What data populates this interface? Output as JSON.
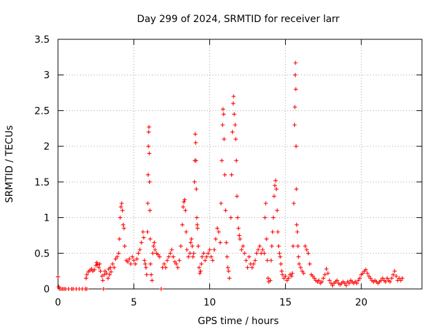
{
  "chart_data": {
    "type": "scatter",
    "title": "Day 299 of 2024, SRMTID for receiver larr",
    "xlabel": "GPS time / hours",
    "ylabel": "SRMTID / TECUs",
    "xlim": [
      0,
      24
    ],
    "ylim": [
      0,
      3.5
    ],
    "xticks": [
      0,
      5,
      10,
      15,
      20
    ],
    "xtick_labels": [
      "0",
      "5",
      "10",
      "15",
      "20"
    ],
    "yticks": [
      0,
      0.5,
      1,
      1.5,
      2,
      2.5,
      3,
      3.5
    ],
    "ytick_labels": [
      "0",
      "0.5",
      "1",
      "1.5",
      "2",
      "2.5",
      "3",
      "3.5"
    ],
    "grid": true,
    "marker": "+",
    "series": [
      {
        "name": "SRMTID",
        "color": "#ff0000",
        "points": [
          [
            0.0,
            0.17
          ],
          [
            0.05,
            0.03
          ],
          [
            0.1,
            0.0
          ],
          [
            0.2,
            0.0
          ],
          [
            0.3,
            0.0
          ],
          [
            0.4,
            0.0
          ],
          [
            0.5,
            0.0
          ],
          [
            0.7,
            0.0
          ],
          [
            0.9,
            0.0
          ],
          [
            1.0,
            0.0
          ],
          [
            1.2,
            0.0
          ],
          [
            1.4,
            0.0
          ],
          [
            1.6,
            0.0
          ],
          [
            1.8,
            0.0
          ],
          [
            1.9,
            0.0
          ],
          [
            1.85,
            0.15
          ],
          [
            1.9,
            0.2
          ],
          [
            2.0,
            0.24
          ],
          [
            2.1,
            0.26
          ],
          [
            2.2,
            0.28
          ],
          [
            2.3,
            0.25
          ],
          [
            2.4,
            0.27
          ],
          [
            2.5,
            0.33
          ],
          [
            2.55,
            0.37
          ],
          [
            2.6,
            0.34
          ],
          [
            2.7,
            0.3
          ],
          [
            2.75,
            0.35
          ],
          [
            2.8,
            0.25
          ],
          [
            2.9,
            0.18
          ],
          [
            2.95,
            0.12
          ],
          [
            3.0,
            0.0
          ],
          [
            3.05,
            0.2
          ],
          [
            3.1,
            0.25
          ],
          [
            3.2,
            0.22
          ],
          [
            3.3,
            0.15
          ],
          [
            3.35,
            0.28
          ],
          [
            3.4,
            0.2
          ],
          [
            3.45,
            0.3
          ],
          [
            3.5,
            0.24
          ],
          [
            3.6,
            0.35
          ],
          [
            3.7,
            0.3
          ],
          [
            3.8,
            0.42
          ],
          [
            3.9,
            0.45
          ],
          [
            4.0,
            0.5
          ],
          [
            4.05,
            0.7
          ],
          [
            4.1,
            1.0
          ],
          [
            4.15,
            1.15
          ],
          [
            4.2,
            1.2
          ],
          [
            4.25,
            1.1
          ],
          [
            4.3,
            0.9
          ],
          [
            4.35,
            0.85
          ],
          [
            4.4,
            0.6
          ],
          [
            4.5,
            0.4
          ],
          [
            4.6,
            0.38
          ],
          [
            4.7,
            0.42
          ],
          [
            4.8,
            0.35
          ],
          [
            4.9,
            0.45
          ],
          [
            5.0,
            0.4
          ],
          [
            5.1,
            0.35
          ],
          [
            5.2,
            0.42
          ],
          [
            5.3,
            0.5
          ],
          [
            5.4,
            0.55
          ],
          [
            5.5,
            0.65
          ],
          [
            5.6,
            0.8
          ],
          [
            5.65,
            0.72
          ],
          [
            5.7,
            0.4
          ],
          [
            5.75,
            0.35
          ],
          [
            5.8,
            0.3
          ],
          [
            5.85,
            0.2
          ],
          [
            5.9,
            0.8
          ],
          [
            5.92,
            1.2
          ],
          [
            5.94,
            1.6
          ],
          [
            5.96,
            2.0
          ],
          [
            5.98,
            2.2
          ],
          [
            6.0,
            2.27
          ],
          [
            6.02,
            1.9
          ],
          [
            6.04,
            1.5
          ],
          [
            6.06,
            1.1
          ],
          [
            6.08,
            0.7
          ],
          [
            6.1,
            0.35
          ],
          [
            6.15,
            0.2
          ],
          [
            6.2,
            0.12
          ],
          [
            6.25,
            0.5
          ],
          [
            6.3,
            0.6
          ],
          [
            6.35,
            0.65
          ],
          [
            6.4,
            0.55
          ],
          [
            6.5,
            0.5
          ],
          [
            6.6,
            0.48
          ],
          [
            6.7,
            0.45
          ],
          [
            6.8,
            0.0
          ],
          [
            6.9,
            0.3
          ],
          [
            7.0,
            0.35
          ],
          [
            7.1,
            0.3
          ],
          [
            7.2,
            0.4
          ],
          [
            7.3,
            0.45
          ],
          [
            7.4,
            0.5
          ],
          [
            7.5,
            0.55
          ],
          [
            7.6,
            0.45
          ],
          [
            7.7,
            0.38
          ],
          [
            7.8,
            0.35
          ],
          [
            7.9,
            0.3
          ],
          [
            8.0,
            0.4
          ],
          [
            8.1,
            0.6
          ],
          [
            8.2,
            0.9
          ],
          [
            8.25,
            1.15
          ],
          [
            8.3,
            1.22
          ],
          [
            8.35,
            1.25
          ],
          [
            8.4,
            1.1
          ],
          [
            8.45,
            0.8
          ],
          [
            8.5,
            0.55
          ],
          [
            8.6,
            0.45
          ],
          [
            8.7,
            0.5
          ],
          [
            8.75,
            0.65
          ],
          [
            8.8,
            0.7
          ],
          [
            8.85,
            0.6
          ],
          [
            8.9,
            0.45
          ],
          [
            8.95,
            0.5
          ],
          [
            9.0,
            1.5
          ],
          [
            9.02,
            1.8
          ],
          [
            9.05,
            2.17
          ],
          [
            9.08,
            2.05
          ],
          [
            9.1,
            1.8
          ],
          [
            9.12,
            1.4
          ],
          [
            9.15,
            1.0
          ],
          [
            9.18,
            0.9
          ],
          [
            9.2,
            0.85
          ],
          [
            9.25,
            0.6
          ],
          [
            9.3,
            0.3
          ],
          [
            9.35,
            0.22
          ],
          [
            9.4,
            0.25
          ],
          [
            9.45,
            0.35
          ],
          [
            9.5,
            0.45
          ],
          [
            9.6,
            0.5
          ],
          [
            9.7,
            0.4
          ],
          [
            9.8,
            0.45
          ],
          [
            9.9,
            0.5
          ],
          [
            10.0,
            0.55
          ],
          [
            10.1,
            0.45
          ],
          [
            10.2,
            0.4
          ],
          [
            10.3,
            0.55
          ],
          [
            10.4,
            0.7
          ],
          [
            10.5,
            0.85
          ],
          [
            10.6,
            0.8
          ],
          [
            10.7,
            0.65
          ],
          [
            10.75,
            1.2
          ],
          [
            10.8,
            1.8
          ],
          [
            10.85,
            2.3
          ],
          [
            10.88,
            2.52
          ],
          [
            10.92,
            2.45
          ],
          [
            10.95,
            2.1
          ],
          [
            11.0,
            1.6
          ],
          [
            11.05,
            1.1
          ],
          [
            11.1,
            0.65
          ],
          [
            11.15,
            0.45
          ],
          [
            11.2,
            0.3
          ],
          [
            11.25,
            0.25
          ],
          [
            11.3,
            0.15
          ],
          [
            11.4,
            1.0
          ],
          [
            11.45,
            1.6
          ],
          [
            11.5,
            2.2
          ],
          [
            11.55,
            2.6
          ],
          [
            11.58,
            2.7
          ],
          [
            11.62,
            2.45
          ],
          [
            11.68,
            2.3
          ],
          [
            11.72,
            2.1
          ],
          [
            11.76,
            1.8
          ],
          [
            11.8,
            1.3
          ],
          [
            11.85,
            1.0
          ],
          [
            11.9,
            0.85
          ],
          [
            11.95,
            0.75
          ],
          [
            12.0,
            0.7
          ],
          [
            12.1,
            0.55
          ],
          [
            12.2,
            0.6
          ],
          [
            12.3,
            0.5
          ],
          [
            12.4,
            0.4
          ],
          [
            12.5,
            0.3
          ],
          [
            12.6,
            0.45
          ],
          [
            12.7,
            0.35
          ],
          [
            12.8,
            0.3
          ],
          [
            12.9,
            0.35
          ],
          [
            13.0,
            0.4
          ],
          [
            13.1,
            0.5
          ],
          [
            13.2,
            0.55
          ],
          [
            13.3,
            0.6
          ],
          [
            13.4,
            0.5
          ],
          [
            13.5,
            0.55
          ],
          [
            13.6,
            0.5
          ],
          [
            13.65,
            1.0
          ],
          [
            13.7,
            1.2
          ],
          [
            13.75,
            0.7
          ],
          [
            13.8,
            0.4
          ],
          [
            13.85,
            0.15
          ],
          [
            13.9,
            0.1
          ],
          [
            14.0,
            0.12
          ],
          [
            14.05,
            0.4
          ],
          [
            14.1,
            0.6
          ],
          [
            14.15,
            0.8
          ],
          [
            14.2,
            1.0
          ],
          [
            14.25,
            1.3
          ],
          [
            14.3,
            1.45
          ],
          [
            14.35,
            1.52
          ],
          [
            14.4,
            1.4
          ],
          [
            14.45,
            1.1
          ],
          [
            14.5,
            0.8
          ],
          [
            14.55,
            0.6
          ],
          [
            14.6,
            0.5
          ],
          [
            14.65,
            0.45
          ],
          [
            14.7,
            0.35
          ],
          [
            14.75,
            0.25
          ],
          [
            14.8,
            0.2
          ],
          [
            14.9,
            0.15
          ],
          [
            15.0,
            0.18
          ],
          [
            15.1,
            0.12
          ],
          [
            15.2,
            0.15
          ],
          [
            15.3,
            0.2
          ],
          [
            15.4,
            0.18
          ],
          [
            15.45,
            0.22
          ],
          [
            15.5,
            0.6
          ],
          [
            15.55,
            1.2
          ],
          [
            15.6,
            2.3
          ],
          [
            15.62,
            2.55
          ],
          [
            15.64,
            3.0
          ],
          [
            15.66,
            3.17
          ],
          [
            15.68,
            2.8
          ],
          [
            15.7,
            2.0
          ],
          [
            15.72,
            1.4
          ],
          [
            15.74,
            0.9
          ],
          [
            15.78,
            0.8
          ],
          [
            15.82,
            0.6
          ],
          [
            15.86,
            0.45
          ],
          [
            15.9,
            0.35
          ],
          [
            16.0,
            0.3
          ],
          [
            16.1,
            0.25
          ],
          [
            16.2,
            0.22
          ],
          [
            16.3,
            0.6
          ],
          [
            16.4,
            0.55
          ],
          [
            16.5,
            0.5
          ],
          [
            16.6,
            0.35
          ],
          [
            16.7,
            0.2
          ],
          [
            16.8,
            0.18
          ],
          [
            16.9,
            0.15
          ],
          [
            17.0,
            0.12
          ],
          [
            17.1,
            0.1
          ],
          [
            17.2,
            0.12
          ],
          [
            17.3,
            0.08
          ],
          [
            17.4,
            0.1
          ],
          [
            17.5,
            0.15
          ],
          [
            17.6,
            0.2
          ],
          [
            17.7,
            0.28
          ],
          [
            17.8,
            0.22
          ],
          [
            17.9,
            0.12
          ],
          [
            18.0,
            0.08
          ],
          [
            18.1,
            0.05
          ],
          [
            18.2,
            0.08
          ],
          [
            18.3,
            0.1
          ],
          [
            18.4,
            0.12
          ],
          [
            18.5,
            0.08
          ],
          [
            18.6,
            0.06
          ],
          [
            18.7,
            0.08
          ],
          [
            18.8,
            0.1
          ],
          [
            18.9,
            0.08
          ],
          [
            19.0,
            0.05
          ],
          [
            19.1,
            0.1
          ],
          [
            19.2,
            0.08
          ],
          [
            19.3,
            0.12
          ],
          [
            19.4,
            0.1
          ],
          [
            19.5,
            0.08
          ],
          [
            19.6,
            0.1
          ],
          [
            19.7,
            0.08
          ],
          [
            19.8,
            0.12
          ],
          [
            19.9,
            0.15
          ],
          [
            20.0,
            0.2
          ],
          [
            20.1,
            0.22
          ],
          [
            20.2,
            0.25
          ],
          [
            20.3,
            0.27
          ],
          [
            20.4,
            0.22
          ],
          [
            20.5,
            0.18
          ],
          [
            20.6,
            0.15
          ],
          [
            20.7,
            0.12
          ],
          [
            20.8,
            0.1
          ],
          [
            20.9,
            0.12
          ],
          [
            21.0,
            0.1
          ],
          [
            21.1,
            0.08
          ],
          [
            21.2,
            0.1
          ],
          [
            21.3,
            0.12
          ],
          [
            21.4,
            0.15
          ],
          [
            21.5,
            0.12
          ],
          [
            21.6,
            0.1
          ],
          [
            21.7,
            0.15
          ],
          [
            21.8,
            0.12
          ],
          [
            21.9,
            0.1
          ],
          [
            22.0,
            0.15
          ],
          [
            22.1,
            0.2
          ],
          [
            22.2,
            0.25
          ],
          [
            22.3,
            0.18
          ],
          [
            22.4,
            0.12
          ],
          [
            22.5,
            0.15
          ],
          [
            22.6,
            0.12
          ],
          [
            22.7,
            0.15
          ]
        ]
      }
    ]
  }
}
